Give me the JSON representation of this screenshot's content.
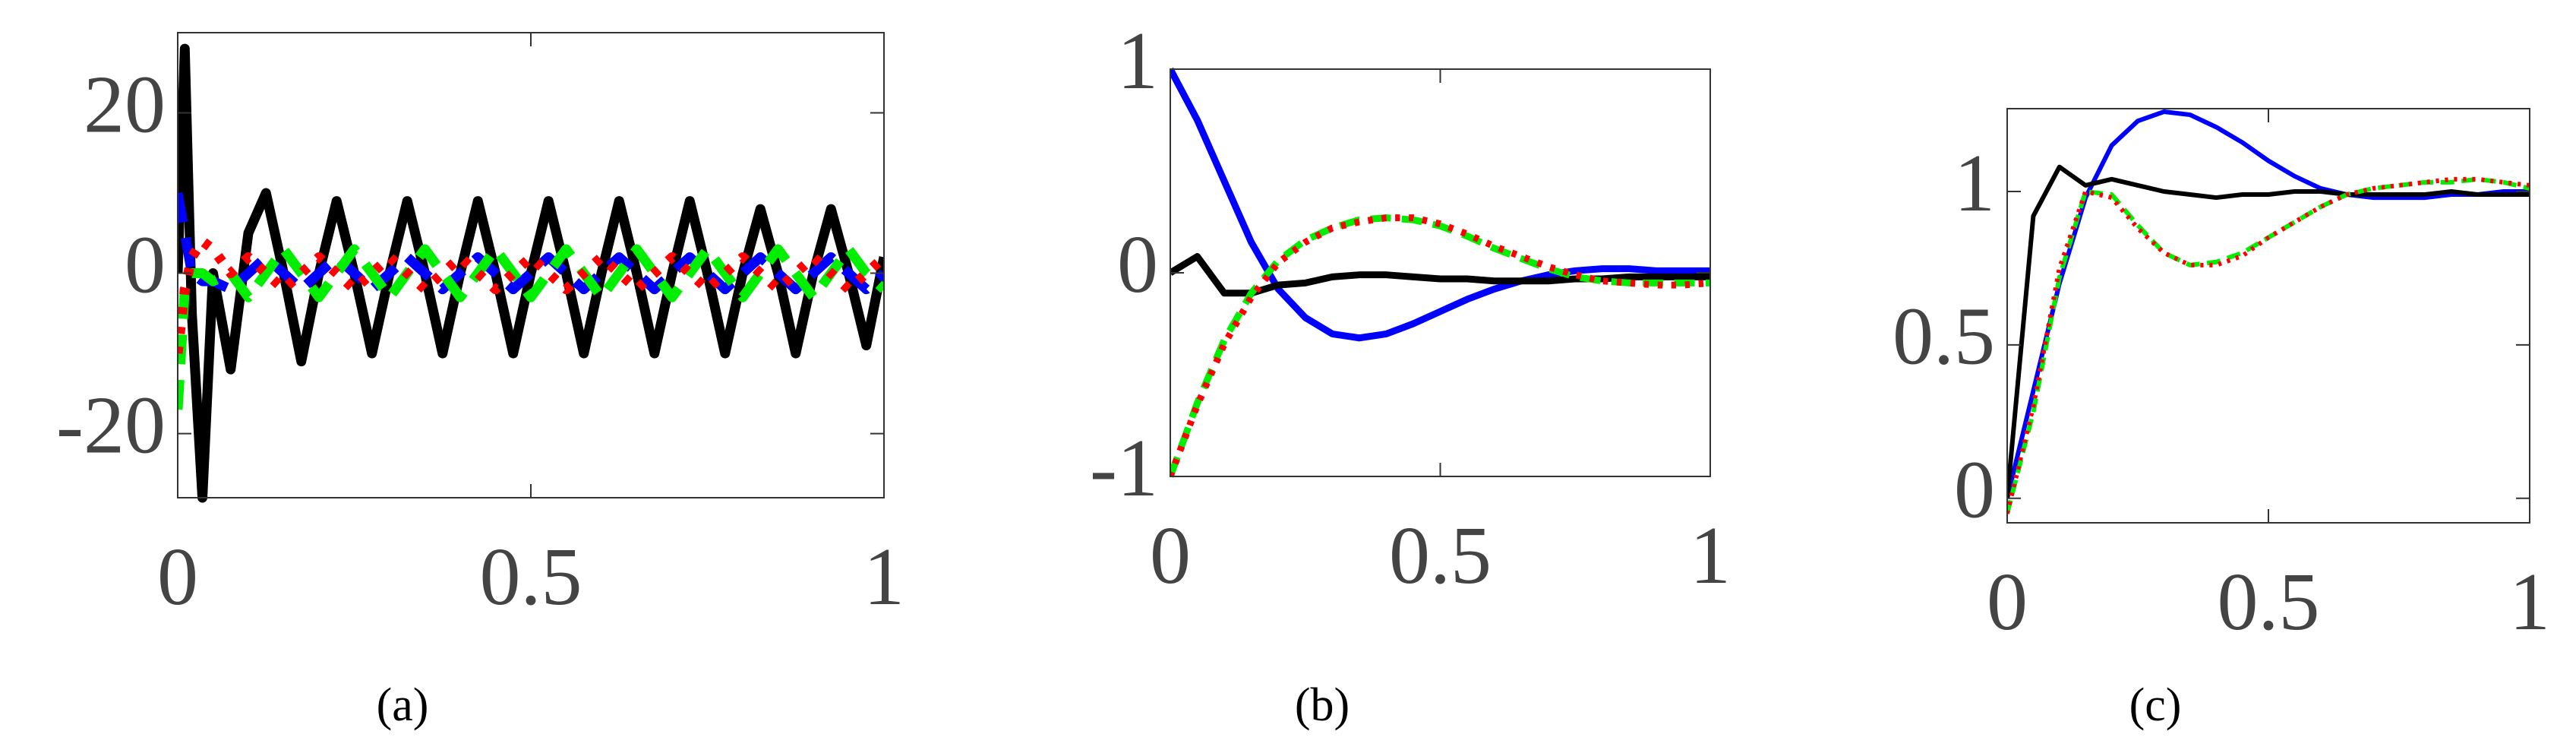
{
  "chart_data": [
    {
      "type": "line",
      "caption": "(a)",
      "x": [
        0,
        0.01,
        0.02,
        0.035,
        0.05,
        0.075,
        0.1,
        0.125,
        0.15,
        0.175,
        0.2,
        0.225,
        0.25,
        0.275,
        0.3,
        0.325,
        0.35,
        0.375,
        0.4,
        0.425,
        0.45,
        0.475,
        0.5,
        0.525,
        0.55,
        0.575,
        0.6,
        0.625,
        0.65,
        0.675,
        0.7,
        0.725,
        0.75,
        0.775,
        0.8,
        0.825,
        0.85,
        0.875,
        0.9,
        0.925,
        0.95,
        0.975,
        1
      ],
      "series": [
        {
          "color": "#000000",
          "linestyle": "solid",
          "values": [
            0,
            28,
            -5,
            -28,
            0,
            -12,
            5,
            10,
            0,
            -11,
            0,
            9,
            0,
            -10,
            0,
            9,
            0,
            -10,
            0,
            9,
            0,
            -10,
            0,
            9,
            0,
            -10,
            0,
            9,
            0,
            -10,
            0,
            9,
            0,
            -10,
            0,
            8,
            0,
            -10,
            0,
            8,
            0,
            -9,
            2
          ]
        },
        {
          "color": "#0000ff",
          "linestyle": "dashed",
          "values": [
            10,
            5,
            0,
            -1,
            -1,
            -2,
            0,
            2,
            0,
            -2,
            0,
            2,
            0,
            -2,
            0,
            2,
            0,
            -2,
            0,
            2,
            0,
            -2,
            0,
            2,
            0,
            -2,
            0,
            2,
            0,
            -2,
            0,
            2,
            0,
            -2,
            0,
            2,
            0,
            -2,
            0,
            2,
            0,
            -2,
            0
          ]
        },
        {
          "color": "#00ee00",
          "linestyle": "dashed",
          "values": [
            -17,
            -2,
            0,
            0,
            -1,
            0,
            -3,
            0,
            3,
            0,
            -3,
            0,
            3,
            0,
            -3,
            0,
            3,
            0,
            -3,
            0,
            3,
            0,
            -3,
            0,
            3,
            0,
            -3,
            0,
            3,
            0,
            -3,
            0,
            3,
            0,
            -3,
            0,
            3,
            0,
            -3,
            0,
            3,
            0,
            -2
          ]
        },
        {
          "color": "#ff0000",
          "linestyle": "dotted",
          "values": [
            -10,
            -2,
            2,
            4,
            3,
            0,
            2,
            0,
            -2,
            0,
            2,
            0,
            -2,
            0,
            2,
            0,
            -2,
            0,
            2,
            0,
            -2,
            0,
            2,
            0,
            -2,
            0,
            2,
            0,
            -2,
            0,
            2,
            0,
            -2,
            0,
            2,
            0,
            -2,
            0,
            2,
            0,
            -2,
            0,
            2
          ]
        }
      ],
      "xlim": [
        0,
        1
      ],
      "ylim": [
        -28,
        30
      ],
      "xticks": [
        0,
        0.5,
        1
      ],
      "yticks": [
        -20,
        0,
        20
      ]
    },
    {
      "type": "line",
      "caption": "(b)",
      "x": [
        0,
        0.05,
        0.1,
        0.15,
        0.2,
        0.25,
        0.3,
        0.35,
        0.4,
        0.45,
        0.5,
        0.55,
        0.6,
        0.65,
        0.7,
        0.75,
        0.8,
        0.85,
        0.9,
        0.95,
        1
      ],
      "series": [
        {
          "color": "#0000ff",
          "linestyle": "solid",
          "values": [
            1,
            0.75,
            0.45,
            0.15,
            -0.08,
            -0.22,
            -0.3,
            -0.32,
            -0.3,
            -0.25,
            -0.19,
            -0.13,
            -0.08,
            -0.04,
            -0.01,
            0.01,
            0.02,
            0.02,
            0.01,
            0.01,
            0.01
          ]
        },
        {
          "color": "#000000",
          "linestyle": "solid",
          "values": [
            0,
            0.08,
            -0.1,
            -0.1,
            -0.06,
            -0.05,
            -0.02,
            -0.01,
            -0.01,
            -0.02,
            -0.03,
            -0.03,
            -0.04,
            -0.04,
            -0.04,
            -0.03,
            -0.03,
            -0.02,
            -0.02,
            -0.02,
            -0.02
          ]
        },
        {
          "color": "#00ee00",
          "linestyle": "dashed",
          "values": [
            -1,
            -0.64,
            -0.33,
            -0.1,
            0.06,
            0.16,
            0.22,
            0.26,
            0.27,
            0.26,
            0.23,
            0.18,
            0.12,
            0.07,
            0.02,
            -0.02,
            -0.04,
            -0.05,
            -0.05,
            -0.05,
            -0.05
          ]
        },
        {
          "color": "#ff0000",
          "linestyle": "dotted",
          "values": [
            -1,
            -0.65,
            -0.35,
            -0.12,
            0.05,
            0.15,
            0.22,
            0.25,
            0.27,
            0.27,
            0.24,
            0.19,
            0.13,
            0.08,
            0.03,
            -0.01,
            -0.04,
            -0.05,
            -0.06,
            -0.06,
            -0.05
          ]
        }
      ],
      "xlim": [
        0,
        1
      ],
      "ylim": [
        -1,
        1
      ],
      "xticks": [
        0,
        0.5,
        1
      ],
      "yticks": [
        -1,
        0,
        1
      ]
    },
    {
      "type": "line",
      "caption": "(c)",
      "x": [
        0,
        0.05,
        0.1,
        0.15,
        0.2,
        0.25,
        0.3,
        0.35,
        0.4,
        0.45,
        0.5,
        0.55,
        0.6,
        0.65,
        0.7,
        0.75,
        0.8,
        0.85,
        0.9,
        0.95,
        1
      ],
      "series": [
        {
          "color": "#0000ff",
          "linestyle": "solid",
          "values": [
            0,
            0.35,
            0.7,
            0.98,
            1.15,
            1.23,
            1.26,
            1.25,
            1.21,
            1.16,
            1.1,
            1.05,
            1.01,
            0.99,
            0.98,
            0.98,
            0.98,
            0.99,
            0.99,
            1.0,
            1.0
          ]
        },
        {
          "color": "#000000",
          "linestyle": "solid",
          "values": [
            0,
            0.92,
            1.08,
            1.02,
            1.04,
            1.02,
            1.0,
            0.99,
            0.98,
            0.99,
            0.99,
            1.0,
            1.0,
            0.99,
            0.99,
            0.99,
            0.99,
            1.0,
            0.99,
            0.99,
            0.99
          ]
        },
        {
          "color": "#00ee00",
          "linestyle": "dashed",
          "values": [
            -0.05,
            0.28,
            0.72,
            1.0,
            0.99,
            0.89,
            0.8,
            0.76,
            0.77,
            0.8,
            0.85,
            0.9,
            0.95,
            0.99,
            1.01,
            1.02,
            1.03,
            1.03,
            1.04,
            1.03,
            1.01
          ]
        },
        {
          "color": "#ff0000",
          "linestyle": "dotted",
          "values": [
            -0.05,
            0.3,
            0.75,
            1.0,
            0.98,
            0.88,
            0.8,
            0.76,
            0.76,
            0.79,
            0.85,
            0.9,
            0.95,
            0.99,
            1.01,
            1.02,
            1.03,
            1.04,
            1.04,
            1.03,
            1.02
          ]
        }
      ],
      "xlim": [
        0,
        1
      ],
      "ylim": [
        -0.08,
        1.27
      ],
      "xticks": [
        0,
        0.5,
        1
      ],
      "yticks": [
        0,
        0.5,
        1
      ]
    }
  ]
}
